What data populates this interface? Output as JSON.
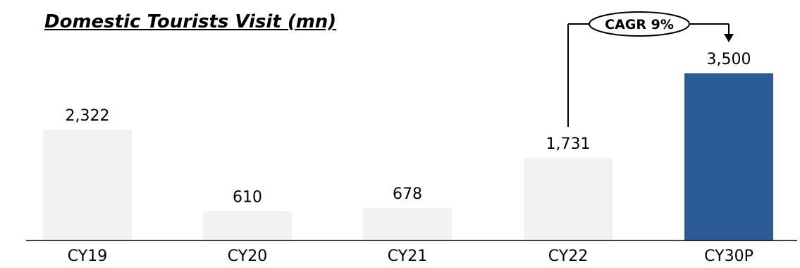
{
  "chart_data": {
    "type": "bar",
    "title": "Domestic Tourists Visit (mn)",
    "xlabel": "",
    "ylabel": "",
    "categories": [
      "CY19",
      "CY20",
      "CY21",
      "CY22",
      "CY30P"
    ],
    "values": [
      2322,
      610,
      678,
      1731,
      3500
    ],
    "value_labels": [
      "2,322",
      "610",
      "678",
      "1,731",
      "3,500"
    ],
    "ylim": [
      0,
      3800
    ],
    "grid": false,
    "legend": "none",
    "annotations": [
      {
        "text": "CAGR 9%",
        "from": "CY22",
        "to": "CY30P"
      }
    ],
    "colors": {
      "default_bar": "#f2f2f2",
      "highlight_bar": "#2c5c96",
      "highlight_category": "CY30P",
      "axis": "#000000",
      "text": "#000000"
    }
  }
}
